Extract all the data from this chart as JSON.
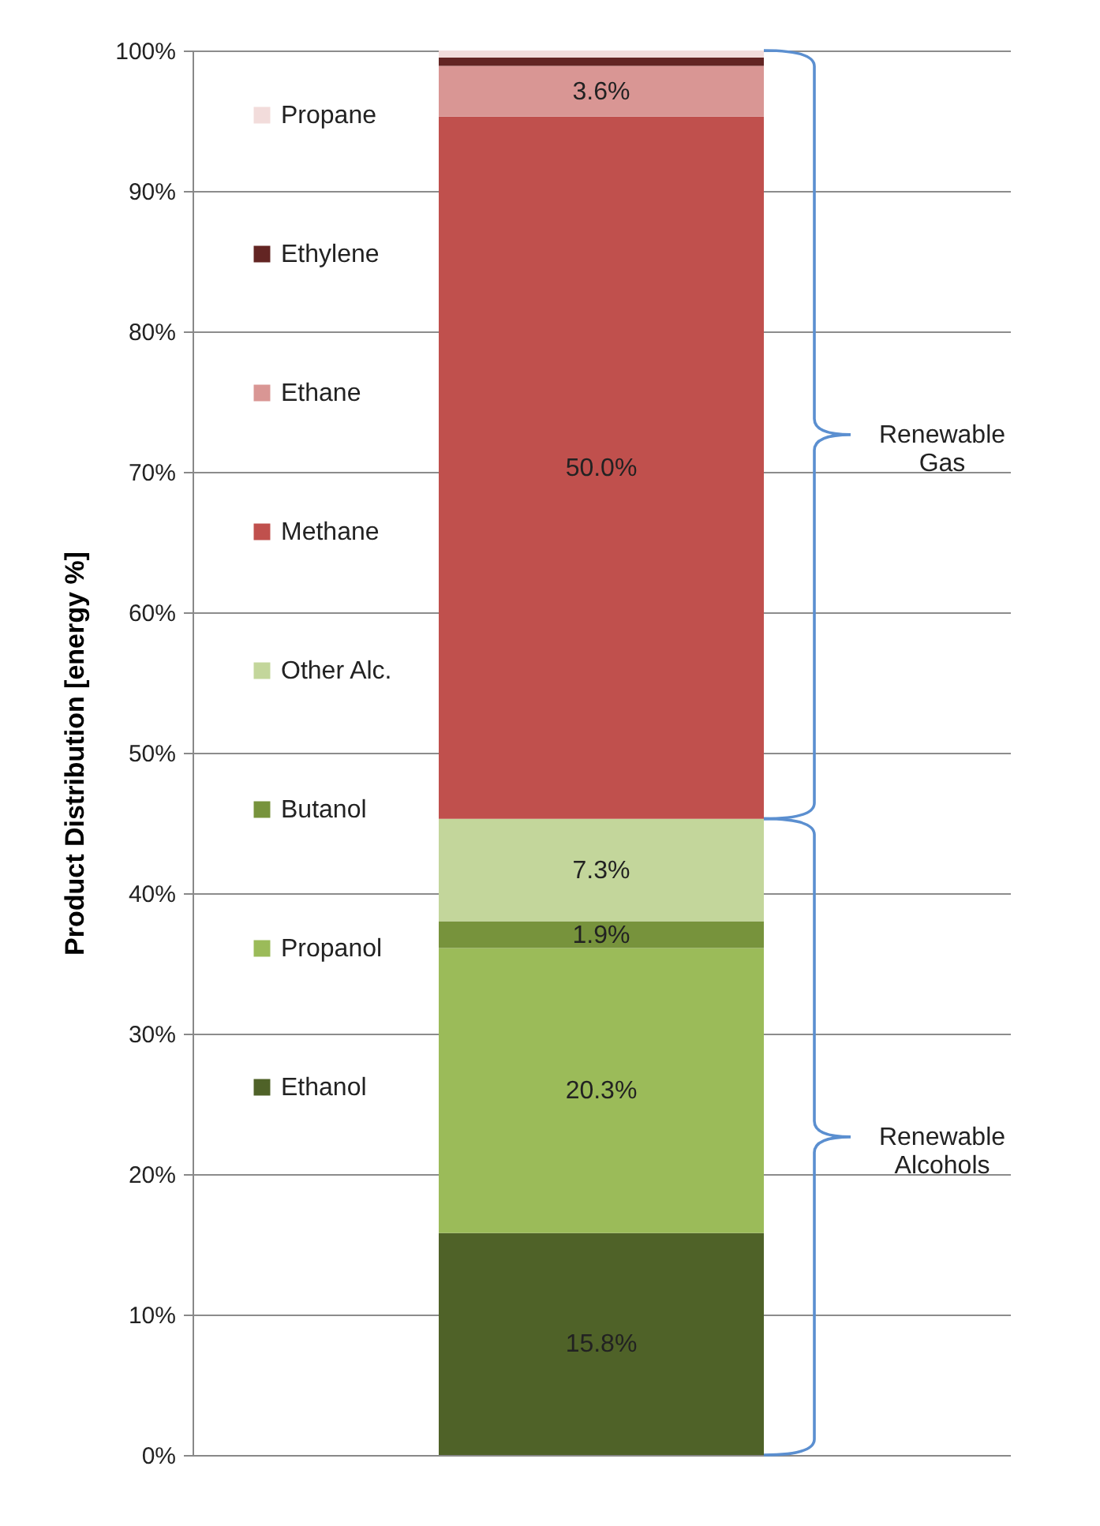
{
  "chart_data": {
    "type": "bar",
    "stacked": true,
    "ylabel": "Product Distribution [energy %]",
    "categories": [
      null
    ],
    "ylim": [
      0,
      100
    ],
    "yticks": [
      {
        "value": 0,
        "label": "0%"
      },
      {
        "value": 10,
        "label": "10%"
      },
      {
        "value": 20,
        "label": "20%"
      },
      {
        "value": 30,
        "label": "30%"
      },
      {
        "value": 40,
        "label": "40%"
      },
      {
        "value": 50,
        "label": "50%"
      },
      {
        "value": 60,
        "label": "60%"
      },
      {
        "value": 70,
        "label": "70%"
      },
      {
        "value": 80,
        "label": "80%"
      },
      {
        "value": 90,
        "label": "90%"
      },
      {
        "value": 100,
        "label": "100%"
      }
    ],
    "grid": "y",
    "legend": "left",
    "annotations": [
      "Renewable Gas",
      "Renewable Alcohols"
    ],
    "series": [
      {
        "name": "Ethanol",
        "color": "#4f6228",
        "values": [
          15.8
        ],
        "value_labels": [
          "15.8%"
        ]
      },
      {
        "name": "Propanol",
        "color": "#9bbb59",
        "values": [
          20.3
        ],
        "value_labels": [
          "20.3%"
        ]
      },
      {
        "name": "Butanol",
        "color": "#77933c",
        "values": [
          1.9
        ],
        "value_labels": [
          "1.9%"
        ]
      },
      {
        "name": "Other Alc.",
        "color": "#c3d69b",
        "values": [
          7.3
        ],
        "value_labels": [
          "7.3%"
        ]
      },
      {
        "name": "Methane",
        "color": "#c0504d",
        "values": [
          50.0
        ],
        "value_labels": [
          "50.0%"
        ]
      },
      {
        "name": "Ethane",
        "color": "#d99694",
        "values": [
          3.6
        ],
        "value_labels": [
          "3.6%"
        ]
      },
      {
        "name": "Ethylene",
        "color": "#632523",
        "values": [
          0.6
        ]
      },
      {
        "name": "Propane",
        "color": "#f2dcdb",
        "values": [
          0.5
        ]
      }
    ]
  }
}
